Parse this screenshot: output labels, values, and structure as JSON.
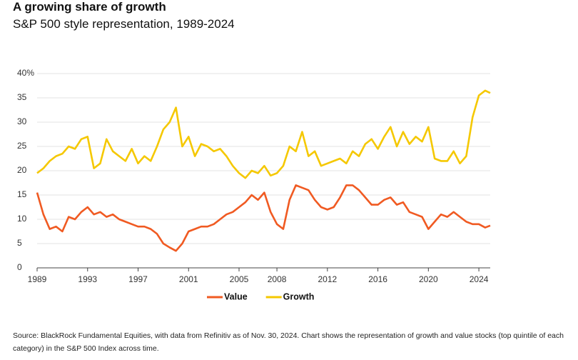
{
  "title": "A growing share of growth",
  "chart_data": {
    "type": "line",
    "subtitle": "S&P 500 style representation, 1989-2024",
    "x": [
      1989,
      1989.5,
      1990,
      1990.5,
      1991,
      1991.5,
      1992,
      1992.5,
      1993,
      1993.5,
      1994,
      1994.5,
      1995,
      1995.5,
      1996,
      1996.5,
      1997,
      1997.5,
      1998,
      1998.5,
      1999,
      1999.5,
      2000,
      2000.5,
      2001,
      2001.5,
      2002,
      2002.5,
      2003,
      2003.5,
      2004,
      2004.5,
      2005,
      2005.5,
      2006,
      2006.5,
      2007,
      2007.5,
      2008,
      2008.5,
      2009,
      2009.5,
      2010,
      2010.5,
      2011,
      2011.5,
      2012,
      2012.5,
      2013,
      2013.5,
      2014,
      2014.5,
      2015,
      2015.5,
      2016,
      2016.5,
      2017,
      2017.5,
      2018,
      2018.5,
      2019,
      2019.5,
      2020,
      2020.5,
      2021,
      2021.5,
      2022,
      2022.5,
      2023,
      2023.5,
      2024,
      2024.5,
      2024.9
    ],
    "series": [
      {
        "name": "Value",
        "color": "#f05a22",
        "values": [
          15.5,
          11,
          8,
          8.5,
          7.5,
          10.5,
          10,
          11.5,
          12.5,
          11,
          11.5,
          10.5,
          11,
          10,
          9.5,
          9,
          8.5,
          8.5,
          8,
          7,
          5,
          4.2,
          3.5,
          5,
          7.5,
          8,
          8.5,
          8.5,
          9,
          10,
          11,
          11.5,
          12.5,
          13.5,
          15,
          14,
          15.5,
          11.5,
          9,
          8,
          14,
          17,
          16.5,
          16,
          14,
          12.5,
          12,
          12.5,
          14.5,
          17,
          17,
          16,
          14.5,
          13,
          13,
          14,
          14.5,
          13,
          13.5,
          11.5,
          11,
          10.5,
          8,
          9.5,
          11,
          10.5,
          11.5,
          10.5,
          9.5,
          9,
          9,
          8.3,
          8.7
        ]
      },
      {
        "name": "Growth",
        "color": "#f5c800",
        "values": [
          19.5,
          20.5,
          22,
          23,
          23.5,
          25,
          24.5,
          26.5,
          27,
          20.5,
          21.5,
          26.5,
          24,
          23,
          22,
          24.5,
          21.5,
          23,
          22,
          25,
          28.5,
          30,
          33,
          25,
          27,
          23,
          25.5,
          25,
          24,
          24.5,
          23,
          21,
          19.5,
          18.5,
          20,
          19.5,
          21,
          19,
          19.5,
          21,
          25,
          24,
          28,
          23,
          24,
          21,
          21.5,
          22,
          22.5,
          21.5,
          24,
          23,
          25.5,
          26.5,
          24.5,
          27,
          29,
          25,
          28,
          25.5,
          27,
          26,
          29,
          22.5,
          22,
          22,
          24,
          21.5,
          23,
          31,
          35.5,
          36.5,
          36
        ]
      }
    ],
    "xlim": [
      1989,
      2024.9
    ],
    "xticks": [
      1989,
      1993,
      1997,
      2001,
      2005,
      2008,
      2012,
      2016,
      2020,
      2024
    ],
    "ylim": [
      0,
      40
    ],
    "yticks": [
      0,
      5,
      10,
      15,
      20,
      25,
      30,
      35,
      {
        "value": 40,
        "label": "40%"
      }
    ],
    "grid": true
  },
  "source": "Source: BlackRock Fundamental Equities, with data from Refinitiv as of Nov. 30, 2024. Chart shows the representation of growth and value stocks (top quintile of each category) in the S&P 500 Index across time."
}
